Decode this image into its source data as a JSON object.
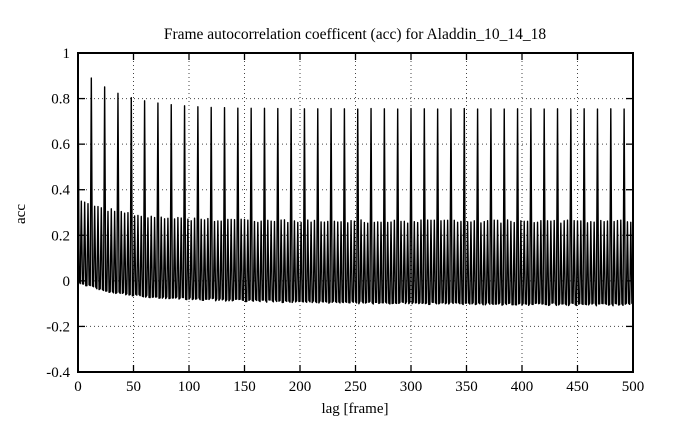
{
  "figure": {
    "background": "#ffffff",
    "foreground": "#000000"
  },
  "chart_data": {
    "type": "line",
    "title": "Frame autocorrelation coefficent (acc) for Aladdin_10_14_18",
    "xlabel": "lag [frame]",
    "ylabel": "acc",
    "series_name": "acc",
    "xlim": [
      0,
      500
    ],
    "ylim": [
      -0.4,
      1
    ],
    "xticks": [
      0,
      50,
      100,
      150,
      200,
      250,
      300,
      350,
      400,
      450,
      500
    ],
    "yticks": [
      -0.4,
      -0.2,
      0,
      0.2,
      0.4,
      0.6,
      0.8,
      1
    ],
    "grid": true,
    "grid_style": "dotted",
    "line_color": "#000000",
    "n_lags": 500,
    "acc_at_lag_0": 1.0,
    "i_frame_period": 12,
    "p_frame_period": 3,
    "main_peaks": {
      "comment_what_is_visible": "tall spikes at every multiple of 12 lags, decaying from 0.89 toward ~0.755",
      "lags": [
        12,
        24,
        36,
        48,
        60,
        72,
        84,
        96,
        108,
        120,
        132,
        144,
        156,
        168,
        180,
        192,
        204,
        216,
        228,
        240,
        252,
        264,
        276,
        288,
        300,
        312,
        324,
        336,
        348,
        360,
        372,
        384,
        396,
        408,
        420,
        432,
        444,
        456,
        468,
        480,
        492
      ],
      "values": [
        0.89,
        0.851,
        0.823,
        0.804,
        0.79,
        0.78,
        0.773,
        0.768,
        0.764,
        0.761,
        0.76,
        0.758,
        0.757,
        0.757,
        0.756,
        0.756,
        0.755,
        0.755,
        0.756,
        0.755,
        0.754,
        0.756,
        0.755,
        0.754,
        0.756,
        0.755,
        0.754,
        0.755,
        0.756,
        0.754,
        0.755,
        0.754,
        0.755,
        0.756,
        0.754,
        0.755,
        0.754,
        0.755,
        0.754,
        0.755,
        0.754
      ]
    },
    "p_peak_envelope": {
      "comment": "medium spikes at multiples of 3 lags, ~0.35 at left decaying to ~0.26",
      "base": 0.26,
      "amp": 0.095,
      "tau": 45,
      "noise": 0.015
    },
    "b_valley_envelope": {
      "comment": "lower envelope of dense band, ~0 at lag 0 decaying to ~-0.105 at lag 500",
      "base": -0.107,
      "a1": 0.055,
      "tau1": 25,
      "a2": 0.05,
      "tau2": 180,
      "noise": 0.012
    }
  }
}
